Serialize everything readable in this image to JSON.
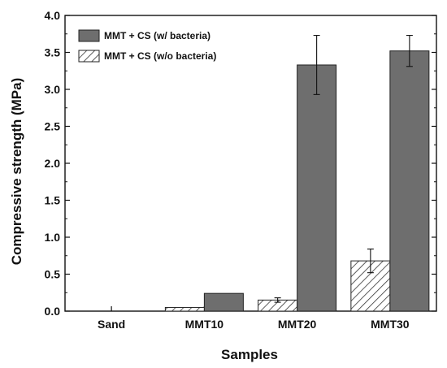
{
  "chart_data": {
    "type": "bar",
    "categories": [
      "Sand",
      "MMT10",
      "MMT20",
      "MMT30"
    ],
    "series": [
      {
        "name": "MMT + CS (w/o bacteria)",
        "pattern": "hatched",
        "color": "#ffffff",
        "values": [
          0.0,
          0.05,
          0.15,
          0.68
        ],
        "errors": [
          0.0,
          0.0,
          0.03,
          0.16
        ]
      },
      {
        "name": "MMT + CS (w/ bacteria)",
        "pattern": "solid",
        "color": "#6e6e6e",
        "values": [
          0.0,
          0.24,
          3.33,
          3.52
        ],
        "errors": [
          0.0,
          0.0,
          0.4,
          0.21
        ]
      }
    ],
    "legend_order": [
      1,
      0
    ],
    "xlabel": "Samples",
    "ylabel": "Compressive strength (MPa)",
    "ylim": [
      0,
      4.0
    ],
    "yticks": [
      "0.0",
      "0.5",
      "1.0",
      "1.5",
      "2.0",
      "2.5",
      "3.0",
      "3.5",
      "4.0"
    ],
    "grid": false,
    "legend_position": "top-left"
  }
}
